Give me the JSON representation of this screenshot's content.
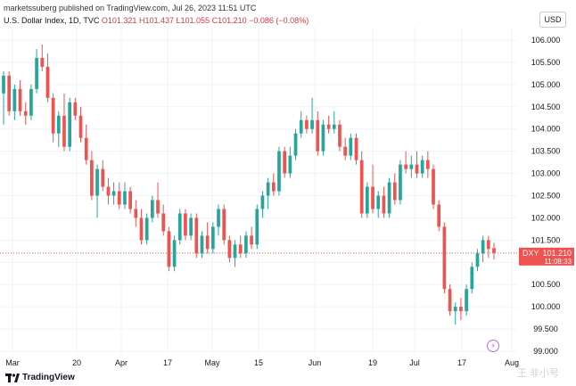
{
  "header": {
    "publisher_line": "marketssuberg published on TradingView.com, Jul 26, 2023 11:51 UTC"
  },
  "legend": {
    "name": "U.S. Dollar Index, 1D, TVC",
    "o": "O101.321",
    "h": "H101.437",
    "l": "L101.055",
    "c": "C101.210",
    "chg": "−0.086 (−0.08%)"
  },
  "currency_label": "USD",
  "price_tag": {
    "symbol": "DXY",
    "price": "101.210",
    "countdown": "11:08:33"
  },
  "footer": {
    "logo_text": "TradingView",
    "watermark": "王 非小号"
  },
  "colors": {
    "up": "#26a69a",
    "down": "#ef5350",
    "price_tag": "#ef5350",
    "grid": "#f0f3fa"
  },
  "chart_data": {
    "type": "candlestick",
    "ylim": [
      99.0,
      106.0
    ],
    "y_ticks": [
      "106.000",
      "105.500",
      "105.000",
      "104.500",
      "104.000",
      "103.500",
      "103.000",
      "102.500",
      "102.000",
      "101.500",
      "101.000",
      "100.500",
      "100.000",
      "99.500",
      "99.000"
    ],
    "x_ticks": [
      "Mar",
      "20",
      "Apr",
      "17",
      "May",
      "15",
      "Jun",
      "19",
      "Jul",
      "17",
      "Aug"
    ],
    "last_price": 101.21,
    "candles": [
      {
        "o": 104.8,
        "h": 105.3,
        "l": 104.1,
        "c": 105.2
      },
      {
        "o": 105.2,
        "h": 105.3,
        "l": 104.3,
        "c": 104.4
      },
      {
        "o": 104.4,
        "h": 105.0,
        "l": 104.2,
        "c": 104.9
      },
      {
        "o": 104.9,
        "h": 105.1,
        "l": 104.3,
        "c": 104.4
      },
      {
        "o": 104.4,
        "h": 104.6,
        "l": 104.1,
        "c": 104.3
      },
      {
        "o": 104.3,
        "h": 105.0,
        "l": 104.2,
        "c": 104.9
      },
      {
        "o": 104.9,
        "h": 105.8,
        "l": 104.8,
        "c": 105.6
      },
      {
        "o": 105.6,
        "h": 105.9,
        "l": 105.3,
        "c": 105.4
      },
      {
        "o": 105.4,
        "h": 105.7,
        "l": 104.6,
        "c": 104.7
      },
      {
        "o": 104.7,
        "h": 104.8,
        "l": 103.7,
        "c": 103.9
      },
      {
        "o": 103.9,
        "h": 104.4,
        "l": 103.6,
        "c": 104.3
      },
      {
        "o": 104.3,
        "h": 104.8,
        "l": 103.5,
        "c": 103.6
      },
      {
        "o": 103.6,
        "h": 104.7,
        "l": 103.5,
        "c": 104.6
      },
      {
        "o": 104.6,
        "h": 104.7,
        "l": 104.2,
        "c": 104.3
      },
      {
        "o": 104.3,
        "h": 104.5,
        "l": 103.7,
        "c": 103.8
      },
      {
        "o": 103.8,
        "h": 104.1,
        "l": 103.2,
        "c": 103.3
      },
      {
        "o": 103.3,
        "h": 103.5,
        "l": 102.4,
        "c": 102.5
      },
      {
        "o": 102.5,
        "h": 103.2,
        "l": 102.0,
        "c": 103.1
      },
      {
        "o": 103.1,
        "h": 103.3,
        "l": 102.6,
        "c": 102.7
      },
      {
        "o": 102.7,
        "h": 102.9,
        "l": 102.3,
        "c": 102.5
      },
      {
        "o": 102.5,
        "h": 102.8,
        "l": 102.3,
        "c": 102.6
      },
      {
        "o": 102.6,
        "h": 102.8,
        "l": 102.2,
        "c": 102.3
      },
      {
        "o": 102.3,
        "h": 102.8,
        "l": 102.2,
        "c": 102.6
      },
      {
        "o": 102.6,
        "h": 102.7,
        "l": 102.1,
        "c": 102.2
      },
      {
        "o": 102.2,
        "h": 102.4,
        "l": 101.8,
        "c": 102.0
      },
      {
        "o": 102.0,
        "h": 102.2,
        "l": 101.4,
        "c": 101.5
      },
      {
        "o": 101.5,
        "h": 102.1,
        "l": 101.4,
        "c": 102.0
      },
      {
        "o": 102.0,
        "h": 102.5,
        "l": 101.9,
        "c": 102.4
      },
      {
        "o": 102.4,
        "h": 102.8,
        "l": 102.0,
        "c": 102.1
      },
      {
        "o": 102.1,
        "h": 102.3,
        "l": 101.6,
        "c": 101.7
      },
      {
        "o": 101.7,
        "h": 101.8,
        "l": 100.8,
        "c": 100.9
      },
      {
        "o": 100.9,
        "h": 101.6,
        "l": 100.8,
        "c": 101.5
      },
      {
        "o": 101.5,
        "h": 102.2,
        "l": 101.4,
        "c": 102.1
      },
      {
        "o": 102.1,
        "h": 102.2,
        "l": 101.5,
        "c": 101.6
      },
      {
        "o": 101.6,
        "h": 102.1,
        "l": 101.5,
        "c": 102.0
      },
      {
        "o": 102.0,
        "h": 102.1,
        "l": 101.1,
        "c": 101.2
      },
      {
        "o": 101.2,
        "h": 101.7,
        "l": 101.1,
        "c": 101.6
      },
      {
        "o": 101.6,
        "h": 101.9,
        "l": 101.2,
        "c": 101.3
      },
      {
        "o": 101.3,
        "h": 101.9,
        "l": 101.2,
        "c": 101.8
      },
      {
        "o": 101.8,
        "h": 102.3,
        "l": 101.6,
        "c": 102.2
      },
      {
        "o": 102.2,
        "h": 102.3,
        "l": 101.4,
        "c": 101.5
      },
      {
        "o": 101.5,
        "h": 101.6,
        "l": 101.0,
        "c": 101.1
      },
      {
        "o": 101.1,
        "h": 101.5,
        "l": 100.9,
        "c": 101.4
      },
      {
        "o": 101.4,
        "h": 101.6,
        "l": 101.1,
        "c": 101.2
      },
      {
        "o": 101.2,
        "h": 101.7,
        "l": 101.1,
        "c": 101.6
      },
      {
        "o": 101.6,
        "h": 101.8,
        "l": 101.3,
        "c": 101.4
      },
      {
        "o": 101.4,
        "h": 102.3,
        "l": 101.3,
        "c": 102.2
      },
      {
        "o": 102.2,
        "h": 102.6,
        "l": 102.0,
        "c": 102.5
      },
      {
        "o": 102.5,
        "h": 102.9,
        "l": 102.2,
        "c": 102.8
      },
      {
        "o": 102.8,
        "h": 103.0,
        "l": 102.5,
        "c": 102.6
      },
      {
        "o": 102.6,
        "h": 103.6,
        "l": 102.5,
        "c": 103.5
      },
      {
        "o": 103.5,
        "h": 103.6,
        "l": 102.9,
        "c": 103.0
      },
      {
        "o": 103.0,
        "h": 103.6,
        "l": 102.9,
        "c": 103.4
      },
      {
        "o": 103.4,
        "h": 104.0,
        "l": 103.3,
        "c": 103.9
      },
      {
        "o": 103.9,
        "h": 104.4,
        "l": 103.8,
        "c": 104.2
      },
      {
        "o": 104.2,
        "h": 104.3,
        "l": 103.9,
        "c": 104.0
      },
      {
        "o": 104.0,
        "h": 104.7,
        "l": 103.9,
        "c": 104.2
      },
      {
        "o": 104.2,
        "h": 104.4,
        "l": 103.4,
        "c": 103.5
      },
      {
        "o": 103.5,
        "h": 104.2,
        "l": 103.4,
        "c": 104.1
      },
      {
        "o": 104.1,
        "h": 104.3,
        "l": 103.9,
        "c": 104.0
      },
      {
        "o": 104.0,
        "h": 104.4,
        "l": 103.9,
        "c": 104.1
      },
      {
        "o": 104.1,
        "h": 104.2,
        "l": 103.5,
        "c": 103.6
      },
      {
        "o": 103.6,
        "h": 103.8,
        "l": 103.3,
        "c": 103.4
      },
      {
        "o": 103.4,
        "h": 103.9,
        "l": 103.3,
        "c": 103.8
      },
      {
        "o": 103.8,
        "h": 103.9,
        "l": 103.2,
        "c": 103.3
      },
      {
        "o": 103.3,
        "h": 103.5,
        "l": 102.0,
        "c": 102.1
      },
      {
        "o": 102.1,
        "h": 102.8,
        "l": 102.0,
        "c": 102.7
      },
      {
        "o": 102.7,
        "h": 103.2,
        "l": 102.1,
        "c": 102.2
      },
      {
        "o": 102.2,
        "h": 102.6,
        "l": 102.0,
        "c": 102.5
      },
      {
        "o": 102.5,
        "h": 102.7,
        "l": 102.0,
        "c": 102.1
      },
      {
        "o": 102.1,
        "h": 102.9,
        "l": 102.0,
        "c": 102.8
      },
      {
        "o": 102.8,
        "h": 103.0,
        "l": 102.3,
        "c": 102.4
      },
      {
        "o": 102.4,
        "h": 103.3,
        "l": 102.3,
        "c": 103.2
      },
      {
        "o": 103.2,
        "h": 103.5,
        "l": 103.0,
        "c": 103.1
      },
      {
        "o": 103.1,
        "h": 103.4,
        "l": 102.9,
        "c": 103.2
      },
      {
        "o": 103.2,
        "h": 103.5,
        "l": 102.9,
        "c": 103.0
      },
      {
        "o": 103.0,
        "h": 103.4,
        "l": 102.9,
        "c": 103.3
      },
      {
        "o": 103.3,
        "h": 103.5,
        "l": 102.9,
        "c": 103.1
      },
      {
        "o": 103.1,
        "h": 103.2,
        "l": 102.2,
        "c": 102.3
      },
      {
        "o": 102.3,
        "h": 102.4,
        "l": 101.7,
        "c": 101.8
      },
      {
        "o": 101.8,
        "h": 101.9,
        "l": 100.3,
        "c": 100.4
      },
      {
        "o": 100.4,
        "h": 100.5,
        "l": 99.8,
        "c": 99.9
      },
      {
        "o": 99.9,
        "h": 100.1,
        "l": 99.6,
        "c": 100.0
      },
      {
        "o": 100.0,
        "h": 100.2,
        "l": 99.7,
        "c": 99.9
      },
      {
        "o": 99.9,
        "h": 100.5,
        "l": 99.8,
        "c": 100.4
      },
      {
        "o": 100.4,
        "h": 101.0,
        "l": 100.3,
        "c": 100.9
      },
      {
        "o": 100.9,
        "h": 101.3,
        "l": 100.8,
        "c": 101.2
      },
      {
        "o": 101.2,
        "h": 101.6,
        "l": 101.0,
        "c": 101.5
      },
      {
        "o": 101.5,
        "h": 101.6,
        "l": 101.1,
        "c": 101.3
      },
      {
        "o": 101.32,
        "h": 101.44,
        "l": 101.06,
        "c": 101.21
      }
    ]
  }
}
